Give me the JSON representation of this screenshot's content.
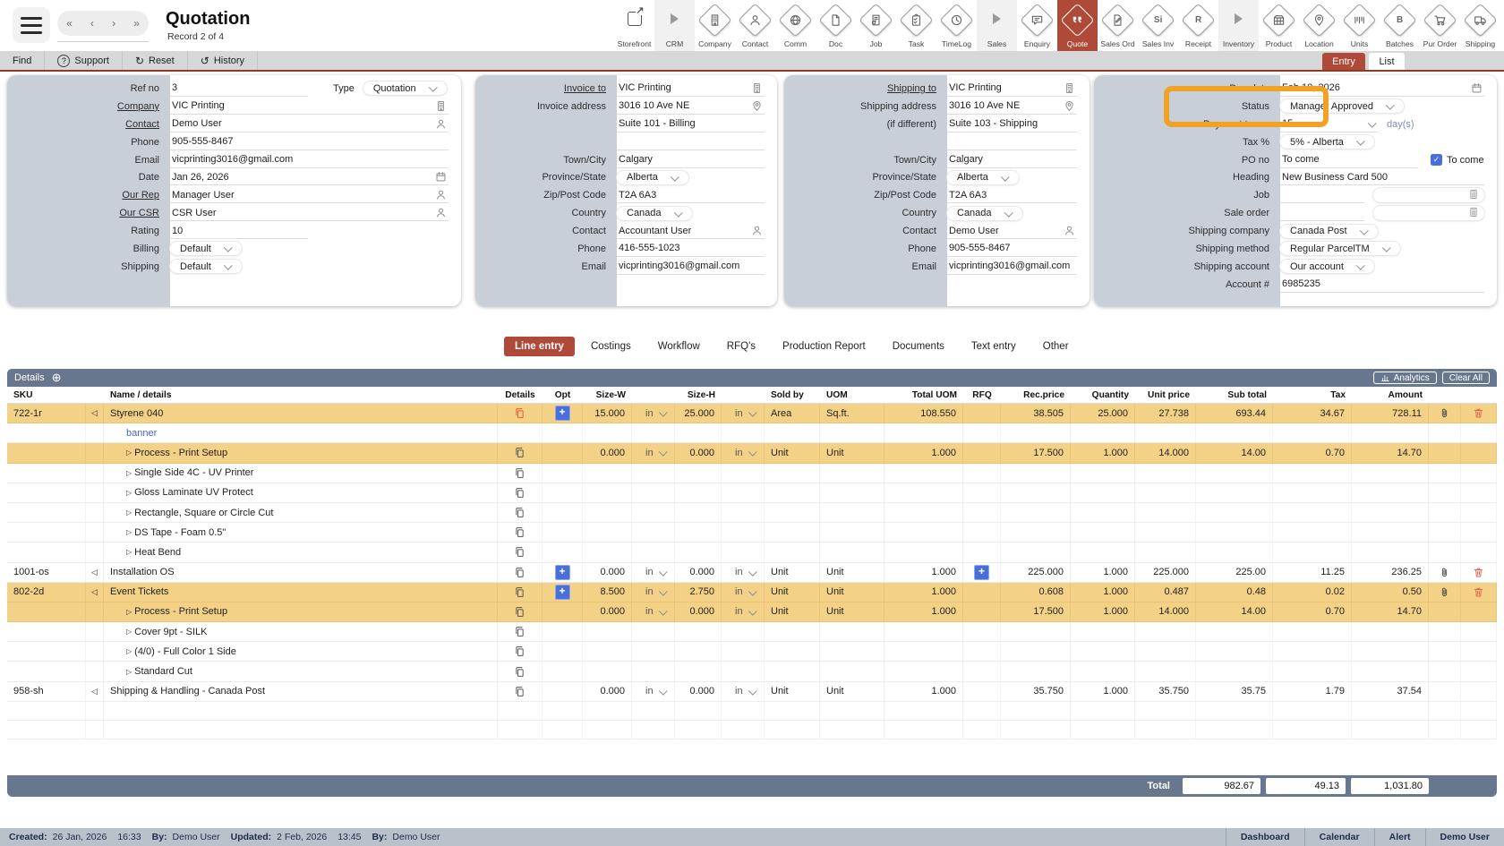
{
  "colors": {
    "brand_red": "#b04a38",
    "highlight_orange": "#f2a127",
    "row_yellow": "#f3d186",
    "slate_bar": "#67788e",
    "accent_blue": "#4a6fdb"
  },
  "header": {
    "title": "Quotation",
    "record": "Record 2 of 4",
    "nav_first": "«",
    "nav_prev": "‹",
    "nav_next": "›",
    "nav_last": "»"
  },
  "iconbar": [
    {
      "label": "Storefront",
      "icon": "external-link",
      "type": "plain"
    },
    {
      "label": "CRM",
      "icon": "play-arrow",
      "type": "group"
    },
    {
      "label": "Company",
      "icon": "building",
      "type": "diamond"
    },
    {
      "label": "Contact",
      "icon": "person",
      "type": "diamond"
    },
    {
      "label": "Comm",
      "icon": "globe",
      "type": "diamond"
    },
    {
      "label": "Doc",
      "icon": "document",
      "type": "diamond"
    },
    {
      "label": "Job",
      "icon": "job-doc",
      "type": "diamond"
    },
    {
      "label": "Task",
      "icon": "clipboard-check",
      "type": "diamond"
    },
    {
      "label": "TimeLog",
      "icon": "clock",
      "type": "diamond"
    },
    {
      "label": "Sales",
      "icon": "play-arrow",
      "type": "group"
    },
    {
      "label": "Enquiry",
      "icon": "quote-bubble",
      "type": "diamond"
    },
    {
      "label": "Quote",
      "icon": "quote-marks",
      "type": "diamond",
      "active": true
    },
    {
      "label": "Sales Ord",
      "icon": "document-pen",
      "type": "diamond"
    },
    {
      "label": "Sales Inv",
      "icon": "letters",
      "type": "diamond",
      "text": "Si"
    },
    {
      "label": "Receipt",
      "icon": "letters",
      "type": "diamond",
      "text": "R"
    },
    {
      "label": "Inventory",
      "icon": "play-arrow",
      "type": "group"
    },
    {
      "label": "Product",
      "icon": "boxes",
      "type": "diamond"
    },
    {
      "label": "Location",
      "icon": "map-pin",
      "type": "diamond"
    },
    {
      "label": "Units",
      "icon": "barcode",
      "type": "diamond"
    },
    {
      "label": "Batches",
      "icon": "letters",
      "type": "diamond",
      "text": "B"
    },
    {
      "label": "Pur Order",
      "icon": "cart",
      "type": "diamond"
    },
    {
      "label": "Shipping",
      "icon": "truck",
      "type": "diamond"
    }
  ],
  "toolbar": {
    "items": [
      {
        "label": "Find",
        "icon": ""
      },
      {
        "label": "Support",
        "icon": "question-circle"
      },
      {
        "label": "Reset",
        "icon": "reset-arrow"
      },
      {
        "label": "History",
        "icon": "history-arrow"
      }
    ],
    "view_tabs": {
      "entry": "Entry",
      "list": "List"
    }
  },
  "panels": {
    "general": {
      "rows": [
        {
          "label": "Ref no",
          "value": "3",
          "type": "short",
          "after_label": "Type",
          "after_select": "Quotation"
        },
        {
          "label": "Company",
          "link": true,
          "value": "VIC Printing",
          "icon": "building"
        },
        {
          "label": "Contact",
          "link": true,
          "value": "Demo User",
          "icon": "person"
        },
        {
          "label": "Phone",
          "value": "905-555-8467"
        },
        {
          "label": "Email",
          "value": "vicprinting3016@gmail.com"
        },
        {
          "label": "Date",
          "value": "Jan 26, 2026",
          "icon": "calendar"
        },
        {
          "label": "Our Rep",
          "link": true,
          "value": "Manager User",
          "icon": "person"
        },
        {
          "label": "Our CSR",
          "link": true,
          "value": "CSR User",
          "icon": "person"
        },
        {
          "label": "Rating",
          "value": "10",
          "type": "short"
        },
        {
          "label": "Billing",
          "select": "Default"
        },
        {
          "label": "Shipping",
          "select": "Default"
        }
      ]
    },
    "invoice": {
      "rows": [
        {
          "label": "Invoice to",
          "link": true,
          "value": "VIC Printing",
          "icon": "building"
        },
        {
          "label": "Invoice address",
          "value": "3016 10 Ave NE",
          "icon": "pin"
        },
        {
          "label": "",
          "value": "Suite 101 - Billing"
        },
        {
          "label": "",
          "value": ""
        },
        {
          "label": "Town/City",
          "value": "Calgary"
        },
        {
          "label": "Province/State",
          "select": "Alberta"
        },
        {
          "label": "Zip/Post Code",
          "value": "T2A 6A3"
        },
        {
          "label": "Country",
          "select": "Canada"
        },
        {
          "label": "Contact",
          "value": "Accountant User",
          "icon": "person"
        },
        {
          "label": "Phone",
          "value": "416-555-1023"
        },
        {
          "label": "Email",
          "value": "vicprinting3016@gmail.com"
        }
      ]
    },
    "shipping": {
      "rows": [
        {
          "label": "Shipping to",
          "link": true,
          "value": "VIC Printing",
          "icon": "building"
        },
        {
          "label": "Shipping address",
          "value": "3016 10 Ave NE",
          "icon": "pin"
        },
        {
          "label": "(if different)",
          "value": "Suite 103 - Shipping"
        },
        {
          "label": "",
          "value": ""
        },
        {
          "label": "Town/City",
          "value": "Calgary"
        },
        {
          "label": "Province/State",
          "select": "Alberta"
        },
        {
          "label": "Zip/Post Code",
          "value": "T2A 6A3"
        },
        {
          "label": "Country",
          "select": "Canada"
        },
        {
          "label": "Contact",
          "value": "Demo User",
          "icon": "person"
        },
        {
          "label": "Phone",
          "value": "905-555-8467"
        },
        {
          "label": "Email",
          "value": "vicprinting3016@gmail.com"
        }
      ]
    },
    "settings": {
      "rows": [
        {
          "label": "Due date",
          "value": "Feb 10, 2026",
          "icon": "calendar"
        },
        {
          "label": "Status",
          "select": "Manager Approved"
        },
        {
          "label": "Payment terms",
          "type": "payterms",
          "value": "15",
          "suffix": "day(s)"
        },
        {
          "label": "Tax %",
          "select": "5% - Alberta"
        },
        {
          "label": "PO no",
          "type": "short",
          "value": "To come",
          "checkbox": true,
          "checkbox_label": "To come"
        },
        {
          "label": "Heading",
          "value": "New Business Card 500"
        },
        {
          "label": "Job",
          "type": "lookup"
        },
        {
          "label": "Sale order",
          "type": "lookup"
        },
        {
          "label": "Shipping company",
          "select": "Canada Post"
        },
        {
          "label": "Shipping method",
          "select": "Regular ParcelTM"
        },
        {
          "label": "Shipping account",
          "select": "Our account"
        },
        {
          "label": "Account #",
          "value": "6985235"
        }
      ]
    }
  },
  "tabs": {
    "items": [
      "Line entry",
      "Costings",
      "Workflow",
      "RFQ's",
      "Production Report",
      "Documents",
      "Text entry",
      "Other"
    ],
    "active_index": 0
  },
  "details": {
    "title": "Details",
    "analytics_label": "Analytics",
    "clear_label": "Clear All",
    "columns": {
      "sku": "SKU",
      "name": "Name / details",
      "det": "Details",
      "opt": "Opt",
      "szw": "Size-W",
      "szh": "Size-H",
      "sold": "Sold by",
      "uom": "UOM",
      "tuom": "Total UOM",
      "rfq": "RFQ",
      "rec": "Rec.price",
      "qty": "Quantity",
      "uprice": "Unit price",
      "sub": "Sub total",
      "tax": "Tax",
      "amt": "Amount"
    },
    "rows": [
      {
        "sku": "722-1r",
        "expand": "left",
        "name": "Styrene 040",
        "indent": 0,
        "bg": "y",
        "det": "red",
        "opt": true,
        "szw": "15.000",
        "uw": "in",
        "szh": "25.000",
        "uh": "in",
        "sold": "Area",
        "uom": "Sq.ft.",
        "tuom": "108.550",
        "rec": "38.505",
        "qty": "25.000",
        "uprice": "27.738",
        "sub": "693.44",
        "tax": "34.67",
        "amt": "728.11",
        "clip": true,
        "trash": true
      },
      {
        "sku": "",
        "name": "banner",
        "indent": 1,
        "bg": "w",
        "blue": true
      },
      {
        "sku": "",
        "expand": "right",
        "name": "Process - Print Setup",
        "indent": 1,
        "bg": "y",
        "det": "copy",
        "szw": "0.000",
        "uw": "in",
        "szh": "0.000",
        "uh": "in",
        "sold": "Unit",
        "uom": "Unit",
        "tuom": "1.000",
        "rec": "17.500",
        "qty": "1.000",
        "uprice": "14.000",
        "sub": "14.00",
        "tax": "0.70",
        "amt": "14.70"
      },
      {
        "sku": "",
        "expand": "right",
        "name": "Single Side 4C - UV Printer",
        "indent": 1,
        "bg": "w",
        "det": "copy"
      },
      {
        "sku": "",
        "expand": "right",
        "name": "Gloss Laminate UV Protect",
        "indent": 1,
        "bg": "w",
        "det": "copy"
      },
      {
        "sku": "",
        "expand": "right",
        "name": "Rectangle, Square or Circle Cut",
        "indent": 1,
        "bg": "w",
        "det": "copy"
      },
      {
        "sku": "",
        "expand": "right",
        "name": "DS Tape - Foam 0.5\"",
        "indent": 1,
        "bg": "w",
        "det": "copy"
      },
      {
        "sku": "",
        "expand": "right",
        "name": "Heat Bend",
        "indent": 1,
        "bg": "w",
        "det": "copy"
      },
      {
        "sku": "1001-os",
        "expand": "left",
        "name": "Installation OS",
        "indent": 0,
        "bg": "w",
        "det": "copy",
        "opt": true,
        "szw": "0.000",
        "uw": "in",
        "szh": "0.000",
        "uh": "in",
        "sold": "Unit",
        "uom": "Unit",
        "tuom": "1.000",
        "rfq": true,
        "rec": "225.000",
        "qty": "1.000",
        "uprice": "225.000",
        "sub": "225.00",
        "tax": "11.25",
        "amt": "236.25",
        "clip": true,
        "trash": true
      },
      {
        "sku": "802-2d",
        "expand": "left",
        "name": "Event Tickets",
        "indent": 0,
        "bg": "y",
        "det": "copy",
        "opt": true,
        "szw": "8.500",
        "uw": "in",
        "szh": "2.750",
        "uh": "in",
        "sold": "Unit",
        "uom": "Unit",
        "tuom": "1.000",
        "rec": "0.608",
        "qty": "1.000",
        "uprice": "0.487",
        "sub": "0.48",
        "tax": "0.02",
        "amt": "0.50",
        "clip": true,
        "trash": true
      },
      {
        "sku": "",
        "expand": "right",
        "name": "Process - Print Setup",
        "indent": 1,
        "bg": "y",
        "det": "copy",
        "szw": "0.000",
        "uw": "in",
        "szh": "0.000",
        "uh": "in",
        "sold": "Unit",
        "uom": "Unit",
        "tuom": "1.000",
        "rec": "17.500",
        "qty": "1.000",
        "uprice": "14.000",
        "sub": "14.00",
        "tax": "0.70",
        "amt": "14.70"
      },
      {
        "sku": "",
        "expand": "right",
        "name": "Cover 9pt - SILK",
        "indent": 1,
        "bg": "w",
        "det": "copy"
      },
      {
        "sku": "",
        "expand": "right",
        "name": "(4/0) - Full Color 1 Side",
        "indent": 1,
        "bg": "w",
        "det": "copy"
      },
      {
        "sku": "",
        "expand": "right",
        "name": "Standard Cut",
        "indent": 1,
        "bg": "w",
        "det": "copy"
      },
      {
        "sku": "958-sh",
        "expand": "left",
        "name": "Shipping & Handling - Canada Post",
        "indent": 0,
        "bg": "w",
        "det": "copy",
        "szw": "0.000",
        "uw": "in",
        "szh": "0.000",
        "uh": "in",
        "sold": "Unit",
        "uom": "Unit",
        "tuom": "1.000",
        "rec": "35.750",
        "qty": "1.000",
        "uprice": "35.750",
        "sub": "35.75",
        "tax": "1.79",
        "amt": "37.54"
      }
    ],
    "total": {
      "label": "Total",
      "sub_total": "982.67",
      "tax": "49.13",
      "amount": "1,031.80"
    }
  },
  "footer": {
    "meta": [
      {
        "label": "Created:",
        "value": "26 Jan, 2026"
      },
      {
        "label": "",
        "value": "16:33"
      },
      {
        "label": "By:",
        "value": "Demo User"
      },
      {
        "label": "Updated:",
        "value": "2 Feb, 2026"
      },
      {
        "label": "",
        "value": "13:45"
      },
      {
        "label": "By:",
        "value": "Demo User"
      }
    ],
    "links": [
      "Dashboard",
      "Calendar",
      "Alert",
      "Demo User"
    ]
  }
}
